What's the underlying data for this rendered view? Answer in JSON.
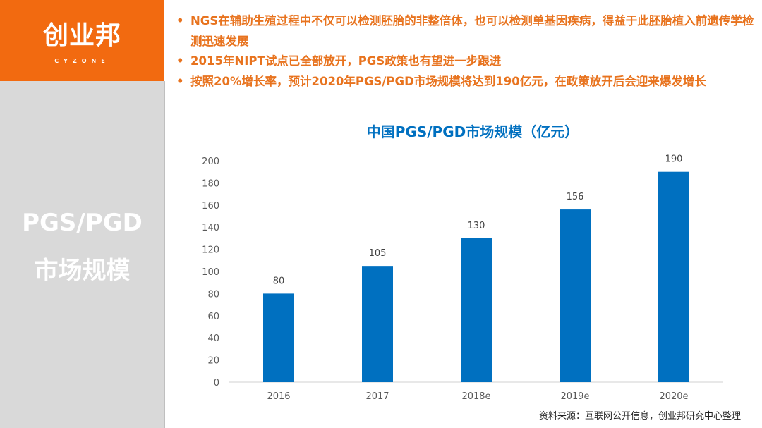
{
  "logo": {
    "cn": "创业邦",
    "en": "CYZONE"
  },
  "sidebar": {
    "line1": "PGS/PGD",
    "line2": "市场规模"
  },
  "bullets": [
    "NGS在辅助生殖过程中不仅可以检测胚胎的非整倍体，也可以检测单基因疾病，得益于此胚胎植入前遗传学检测迅速发展",
    "2015年NIPT试点已全部放开，PGS政策也有望进一步跟进",
    "按照20%增长率，预计2020年PGS/PGD市场规模将达到190亿元，在政策放开后会迎来爆发增长"
  ],
  "source": "资料来源：互联网公开信息，创业邦研究中心整理",
  "colors": {
    "brand_orange": "#F26A10",
    "bar": "#0070C0",
    "title": "#0070C0",
    "bullet_text": "#E8731E",
    "sidebar_bg": "#D9D9D9"
  },
  "chart_data": {
    "type": "bar",
    "title": "中国PGS/PGD市场规模（亿元）",
    "categories": [
      "2016",
      "2017",
      "2018e",
      "2019e",
      "2020e"
    ],
    "values": [
      80,
      105,
      130,
      156,
      190
    ],
    "data_labels": [
      "80",
      "105",
      "130",
      "156",
      "190"
    ],
    "yticks": [
      "0",
      "20",
      "40",
      "60",
      "80",
      "100",
      "120",
      "140",
      "160",
      "180",
      "200"
    ],
    "ylim": [
      0,
      200
    ],
    "xlabel": "",
    "ylabel": "",
    "grid": false,
    "legend": "none"
  }
}
